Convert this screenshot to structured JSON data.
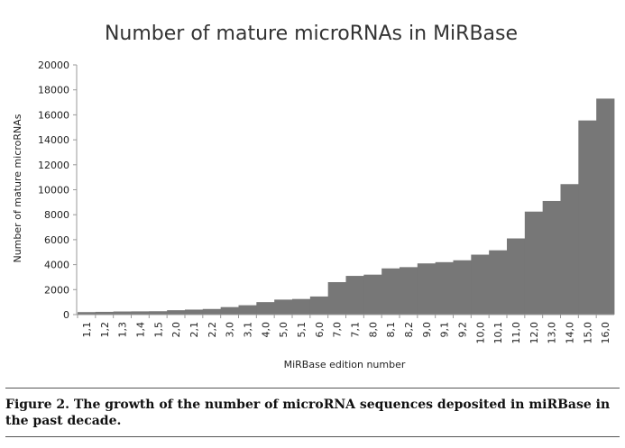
{
  "chart_data": {
    "type": "bar",
    "title": "Number of mature microRNAs in MiRBase",
    "xlabel": "MiRBase edition number",
    "ylabel": "Number of mature microRNAs",
    "ylim": [
      0,
      20000
    ],
    "yticks": [
      "0",
      "2000",
      "4000",
      "6000",
      "8000",
      "10000",
      "12000",
      "14000",
      "16000",
      "18000",
      "20000"
    ],
    "categories": [
      "1,1",
      "1,2",
      "1,3",
      "1,4",
      "1,5",
      "2,0",
      "2,1",
      "2,2",
      "3,0",
      "3,1",
      "4,0",
      "5,0",
      "5,1",
      "6,0",
      "7,0",
      "7,1",
      "8,0",
      "8,1",
      "8,2",
      "9,0",
      "9,1",
      "9,2",
      "10,0",
      "10,1",
      "11,0",
      "12,0",
      "13,0",
      "14,0",
      "15,0",
      "16,0"
    ],
    "values": [
      200,
      220,
      250,
      260,
      270,
      350,
      400,
      450,
      600,
      750,
      1000,
      1200,
      1250,
      1450,
      2600,
      3100,
      3200,
      3700,
      3800,
      4100,
      4200,
      4350,
      4800,
      5150,
      6100,
      8250,
      9100,
      10450,
      15550,
      17300
    ],
    "bar_color": "#777777",
    "grid": false,
    "legend": "none"
  },
  "caption": "Figure 2. The growth of the number of microRNA sequences deposited in miRBase in the past decade."
}
